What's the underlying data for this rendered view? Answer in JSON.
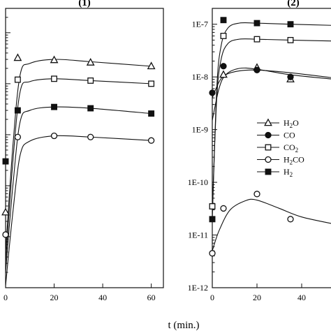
{
  "chart_data": [
    {
      "type": "scatter",
      "panel_title": "(1)",
      "xlabel": "",
      "xlim": [
        0,
        65
      ],
      "yscale": "log",
      "ylim": [
        1e-12,
        3e-07
      ],
      "x_ticks": [
        0,
        20,
        40,
        60
      ],
      "x_tick_labels": [
        "0",
        "20",
        "40",
        "60"
      ],
      "y_tick_labels": [],
      "series": [
        {
          "marker": "triangle-open",
          "points": [
            [
              0,
              3e-11
            ],
            [
              5,
              3.2e-08
            ],
            [
              20,
              2.9e-08
            ],
            [
              35,
              2.6e-08
            ],
            [
              60,
              2.2e-08
            ]
          ],
          "curve": [
            [
              0,
              5e-12
            ],
            [
              3,
              6e-10
            ],
            [
              6,
              1.5e-08
            ],
            [
              10,
              2.5e-08
            ],
            [
              20,
              3e-08
            ],
            [
              35,
              2.7e-08
            ],
            [
              60,
              2.2e-08
            ]
          ]
        },
        {
          "marker": "square-open",
          "points": [
            [
              5,
              1.2e-08
            ],
            [
              20,
              1.25e-08
            ],
            [
              35,
              1.15e-08
            ],
            [
              60,
              1e-08
            ]
          ],
          "curve": [
            [
              0,
              3e-12
            ],
            [
              3,
              3e-10
            ],
            [
              6,
              7e-09
            ],
            [
              10,
              1.1e-08
            ],
            [
              20,
              1.25e-08
            ],
            [
              35,
              1.15e-08
            ],
            [
              60,
              1e-08
            ]
          ]
        },
        {
          "marker": "square-filled",
          "points": [
            [
              0,
              3e-10
            ],
            [
              5,
              3e-09
            ],
            [
              20,
              3.5e-09
            ],
            [
              35,
              3.3e-09
            ],
            [
              60,
              2.6e-09
            ]
          ],
          "curve": [
            [
              0,
              2e-12
            ],
            [
              3,
              1e-10
            ],
            [
              6,
              1.8e-09
            ],
            [
              10,
              3e-09
            ],
            [
              20,
              3.5e-09
            ],
            [
              35,
              3.3e-09
            ],
            [
              60,
              2.6e-09
            ]
          ]
        },
        {
          "marker": "circle-open",
          "points": [
            [
              0,
              1.1e-11
            ],
            [
              5,
              9e-10
            ],
            [
              20,
              9.5e-10
            ],
            [
              35,
              9e-10
            ],
            [
              60,
              7.7e-10
            ]
          ],
          "curve": [
            [
              0,
              1.1e-12
            ],
            [
              3,
              3e-11
            ],
            [
              6,
              4e-10
            ],
            [
              10,
              7.5e-10
            ],
            [
              20,
              9.5e-10
            ],
            [
              35,
              9e-10
            ],
            [
              60,
              7.7e-10
            ]
          ]
        }
      ]
    },
    {
      "type": "scatter",
      "panel_title": "(2)",
      "xlabel": "",
      "xlim": [
        0,
        55
      ],
      "yscale": "log",
      "ylim": [
        1e-12,
        2e-07
      ],
      "x_ticks": [
        0,
        20,
        40
      ],
      "x_tick_labels": [
        "0",
        "20",
        "40"
      ],
      "y_ticks": [
        1e-12,
        1e-11,
        1e-10,
        1e-09,
        1e-08,
        1e-07
      ],
      "y_tick_labels": [
        "1E-12",
        "1E-11",
        "1E-10",
        "1E-9",
        "1E-8",
        "1E-7"
      ],
      "legend": {
        "placement": "center-right",
        "entries": [
          {
            "label": "H",
            "sub": "2",
            "suffix": "O",
            "marker": "triangle-open"
          },
          {
            "label": "CO",
            "sub": "",
            "suffix": "",
            "marker": "circle-filled"
          },
          {
            "label": "CO",
            "sub": "2",
            "suffix": "",
            "marker": "square-open"
          },
          {
            "label": "H",
            "sub": "2",
            "suffix": "CO",
            "marker": "circle-open"
          },
          {
            "label": "H",
            "sub": "2",
            "suffix": "",
            "marker": "square-filled"
          }
        ]
      },
      "series": [
        {
          "name": "H2O",
          "marker": "triangle-open",
          "points": [
            [
              5,
              1.1e-08
            ],
            [
              20,
              1.5e-08
            ],
            [
              35,
              9e-09
            ]
          ],
          "curve": [
            [
              0,
              1.5e-09
            ],
            [
              3,
              6e-09
            ],
            [
              6,
              1.1e-08
            ],
            [
              12,
              1.45e-08
            ],
            [
              20,
              1.4e-08
            ],
            [
              35,
              1.1e-08
            ],
            [
              55,
              9e-09
            ]
          ]
        },
        {
          "name": "CO",
          "marker": "circle-filled",
          "points": [
            [
              0,
              5e-09
            ],
            [
              5,
              1.6e-08
            ],
            [
              20,
              1.35e-08
            ],
            [
              35,
              1e-08
            ]
          ],
          "curve": [
            [
              0,
              4e-09
            ],
            [
              3,
              8e-09
            ],
            [
              6,
              1.1e-08
            ],
            [
              12,
              1.3e-08
            ],
            [
              20,
              1.35e-08
            ],
            [
              35,
              1.2e-08
            ],
            [
              55,
              9.5e-09
            ]
          ]
        },
        {
          "name": "CO2",
          "marker": "square-open",
          "points": [
            [
              0,
              3.5e-11
            ],
            [
              5,
              6e-08
            ],
            [
              20,
              5.2e-08
            ],
            [
              35,
              5e-08
            ]
          ],
          "curve": [
            [
              0,
              3e-11
            ],
            [
              2,
              4e-09
            ],
            [
              4,
              2.2e-08
            ],
            [
              7,
              4.3e-08
            ],
            [
              12,
              5.2e-08
            ],
            [
              20,
              5.2e-08
            ],
            [
              35,
              5e-08
            ],
            [
              55,
              4.8e-08
            ]
          ]
        },
        {
          "name": "H2CO",
          "marker": "circle-open",
          "points": [
            [
              0,
              4.5e-12
            ],
            [
              5,
              3.2e-11
            ],
            [
              20,
              6e-11
            ],
            [
              35,
              2e-11
            ]
          ],
          "curve": [
            [
              0,
              5e-12
            ],
            [
              3,
              1.2e-11
            ],
            [
              8,
              3e-11
            ],
            [
              15,
              4.5e-11
            ],
            [
              20,
              4.6e-11
            ],
            [
              30,
              3.2e-11
            ],
            [
              40,
              2.2e-11
            ],
            [
              55,
              1.6e-11
            ]
          ]
        },
        {
          "name": "H2",
          "marker": "square-filled",
          "points": [
            [
              0,
              2e-11
            ],
            [
              5,
              1.2e-07
            ],
            [
              20,
              1.05e-07
            ],
            [
              35,
              1e-07
            ]
          ],
          "curve": [
            [
              0,
              2e-11
            ],
            [
              2,
              6e-09
            ],
            [
              4,
              4e-08
            ],
            [
              7,
              8.5e-08
            ],
            [
              12,
              1.05e-07
            ],
            [
              20,
              1.05e-07
            ],
            [
              35,
              1e-07
            ],
            [
              55,
              9.5e-08
            ]
          ]
        }
      ]
    }
  ],
  "shared_xlabel": "t (min.)"
}
